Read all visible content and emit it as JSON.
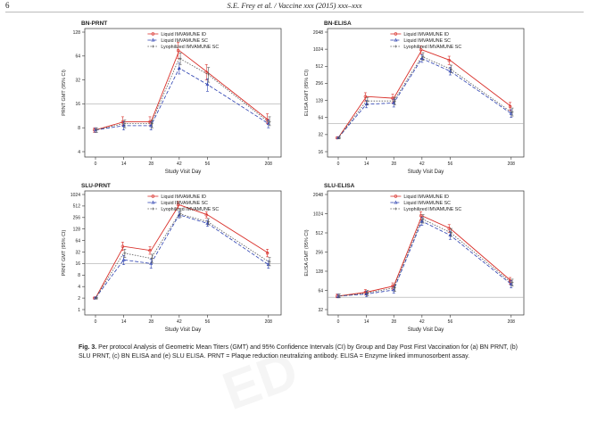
{
  "header": {
    "page_number": "6",
    "running_head": "S.E. Frey et al. / Vaccine xxx (2015) xxx–xxx"
  },
  "watermark_text": "ED",
  "caption": {
    "label": "Fig. 3.",
    "text": " Per protocol Analysis of Geometric Mean Titers (GMT) and 95% Confidence Intervals (CI) by Group and Day Post First Vaccination for (a) BN PRNT, (b) SLU PRNT, (c) BN ELISA and (e) SLU ELISA. PRNT = Plaque reduction neutralizing antibody. ELISA = Enzyme linked immunosorbent assay."
  },
  "colors": {
    "id": "#d9302a",
    "sc": "#2a3fb0",
    "lyo": "#555555",
    "ref": "#aaaaaa",
    "axis": "#333333"
  },
  "chart_data": [
    {
      "type": "line",
      "title": "BN-PRNT",
      "xlabel": "Study Visit Day",
      "ylabel": "PRNT  GMT (95% CI)",
      "yscale": "log2",
      "x": [
        0,
        14,
        28,
        42,
        56,
        208
      ],
      "x_tick_labels": [
        "0",
        "14",
        "28",
        "42",
        "56",
        "208"
      ],
      "y_ticks": [
        4,
        8,
        16,
        32,
        64,
        128
      ],
      "y_tick_labels": [
        "4",
        "8",
        "16",
        "32",
        "64",
        "128"
      ],
      "ylim": [
        4,
        128
      ],
      "reference_line": 16,
      "legend": [
        "Liquid IMVAMUNE ID",
        "Liquid IMVAMUNE SC",
        "Lyophilized IMVAMUNE SC"
      ],
      "legend_position": "top-right",
      "series": [
        {
          "name": "Liquid IMVAMUNE ID",
          "values": [
            7.5,
            9.5,
            9.5,
            75,
            40,
            10
          ],
          "low": [
            7,
            8.5,
            8.5,
            60,
            32,
            9
          ],
          "high": [
            8,
            11,
            11,
            95,
            50,
            12
          ]
        },
        {
          "name": "Liquid IMVAMUNE SC",
          "values": [
            7.5,
            8.5,
            8.5,
            45,
            28,
            9
          ],
          "low": [
            7,
            7.5,
            7.5,
            38,
            23,
            8
          ],
          "high": [
            8,
            9.5,
            9.5,
            52,
            33,
            10
          ]
        },
        {
          "name": "Lyophilized IMVAMUNE SC",
          "values": [
            7.5,
            9,
            9,
            60,
            38,
            9.5
          ],
          "low": [
            7,
            8,
            8,
            50,
            30,
            8.5
          ],
          "high": [
            8,
            10,
            10,
            70,
            46,
            11
          ]
        }
      ]
    },
    {
      "type": "line",
      "title": "BN-ELISA",
      "xlabel": "Study Visit Day",
      "ylabel": "ELISA  GMT (95% CI)",
      "yscale": "log2",
      "x": [
        0,
        14,
        28,
        42,
        56,
        208
      ],
      "x_tick_labels": [
        "0",
        "14",
        "28",
        "42",
        "56",
        "208"
      ],
      "y_ticks": [
        16,
        32,
        64,
        128,
        256,
        512,
        1024,
        2048
      ],
      "y_tick_labels": [
        "16",
        "32",
        "64",
        "128",
        "256",
        "512",
        "1024",
        "2048"
      ],
      "ylim": [
        16,
        2048
      ],
      "reference_line": 50,
      "legend": [
        "Liquid IMVAMUNE ID",
        "Liquid IMVAMUNE SC",
        "Lyophilized IMVAMUNE SC"
      ],
      "legend_position": "top-right",
      "series": [
        {
          "name": "Liquid IMVAMUNE ID",
          "values": [
            28,
            150,
            140,
            1000,
            650,
            100
          ],
          "low": [
            27,
            125,
            115,
            850,
            550,
            85
          ],
          "high": [
            29,
            175,
            165,
            1180,
            770,
            118
          ]
        },
        {
          "name": "Liquid IMVAMUNE SC",
          "values": [
            28,
            110,
            115,
            700,
            420,
            75
          ],
          "low": [
            27,
            95,
            98,
            600,
            360,
            64
          ],
          "high": [
            29,
            128,
            135,
            820,
            490,
            88
          ]
        },
        {
          "name": "Lyophilized IMVAMUNE SC",
          "values": [
            28,
            125,
            125,
            760,
            460,
            80
          ],
          "low": [
            27,
            108,
            108,
            650,
            395,
            68
          ],
          "high": [
            29,
            145,
            145,
            890,
            535,
            94
          ]
        }
      ]
    },
    {
      "type": "line",
      "title": "SLU-PRNT",
      "xlabel": "Study Visit Day",
      "ylabel": "PRNT  GMT (95% CI)",
      "yscale": "log2",
      "x": [
        0,
        14,
        28,
        42,
        56,
        208
      ],
      "x_tick_labels": [
        "0",
        "14",
        "28",
        "42",
        "56",
        "208"
      ],
      "y_ticks": [
        1,
        2,
        4,
        8,
        16,
        32,
        64,
        128,
        256,
        512,
        1024
      ],
      "y_tick_labels": [
        "1",
        "2",
        "4",
        "8",
        "16",
        "32",
        "64",
        "128",
        "256",
        "512",
        "1024"
      ],
      "ylim": [
        1,
        1024
      ],
      "reference_line": 16,
      "legend": [
        "Liquid IMVAMUNE ID",
        "Liquid IMVAMUNE SC",
        "Lyophilized IMVAMUNE SC"
      ],
      "legend_position": "top-right",
      "series": [
        {
          "name": "Liquid IMVAMUNE ID",
          "values": [
            2,
            45,
            35,
            550,
            300,
            30
          ],
          "low": [
            1.9,
            35,
            28,
            450,
            250,
            24
          ],
          "high": [
            2.1,
            58,
            44,
            670,
            360,
            38
          ]
        },
        {
          "name": "Liquid IMVAMUNE SC",
          "values": [
            2,
            20,
            16,
            300,
            180,
            15
          ],
          "low": [
            1.9,
            15,
            12,
            250,
            150,
            12
          ],
          "high": [
            2.1,
            26,
            21,
            360,
            215,
            19
          ]
        },
        {
          "name": "Lyophilized IMVAMUNE SC",
          "values": [
            2,
            30,
            22,
            320,
            200,
            18
          ],
          "low": [
            1.9,
            23,
            17,
            265,
            165,
            14
          ],
          "high": [
            2.1,
            38,
            28,
            385,
            240,
            23
          ]
        }
      ]
    },
    {
      "type": "line",
      "title": "SLU-ELISA",
      "xlabel": "Study Visit Day",
      "ylabel": "ELISA  GMT (95% CI)",
      "yscale": "log2",
      "x": [
        0,
        14,
        28,
        42,
        56,
        208
      ],
      "x_tick_labels": [
        "0",
        "14",
        "28",
        "42",
        "56",
        "208"
      ],
      "y_ticks": [
        32,
        64,
        128,
        256,
        512,
        1024,
        2048
      ],
      "y_tick_labels": [
        "32",
        "64",
        "128",
        "256",
        "512",
        "1024",
        "2048"
      ],
      "ylim": [
        32,
        2048
      ],
      "reference_line": 50,
      "legend": [
        "Liquid IMVAMUNE ID",
        "Liquid IMVAMUNE SC",
        "Lyophilized IMVAMUNE SC"
      ],
      "legend_position": "top-right",
      "series": [
        {
          "name": "Liquid IMVAMUNE ID",
          "values": [
            52,
            60,
            75,
            950,
            600,
            90
          ],
          "low": [
            49,
            55,
            67,
            820,
            520,
            80
          ],
          "high": [
            56,
            66,
            84,
            1100,
            690,
            102
          ]
        },
        {
          "name": "Liquid IMVAMUNE SC",
          "values": [
            52,
            56,
            65,
            780,
            470,
            80
          ],
          "low": [
            49,
            51,
            58,
            670,
            405,
            70
          ],
          "high": [
            56,
            62,
            73,
            900,
            545,
            91
          ]
        },
        {
          "name": "Lyophilized IMVAMUNE SC",
          "values": [
            52,
            58,
            70,
            850,
            520,
            85
          ],
          "low": [
            49,
            53,
            62,
            730,
            450,
            75
          ],
          "high": [
            56,
            64,
            79,
            990,
            600,
            96
          ]
        }
      ]
    }
  ]
}
